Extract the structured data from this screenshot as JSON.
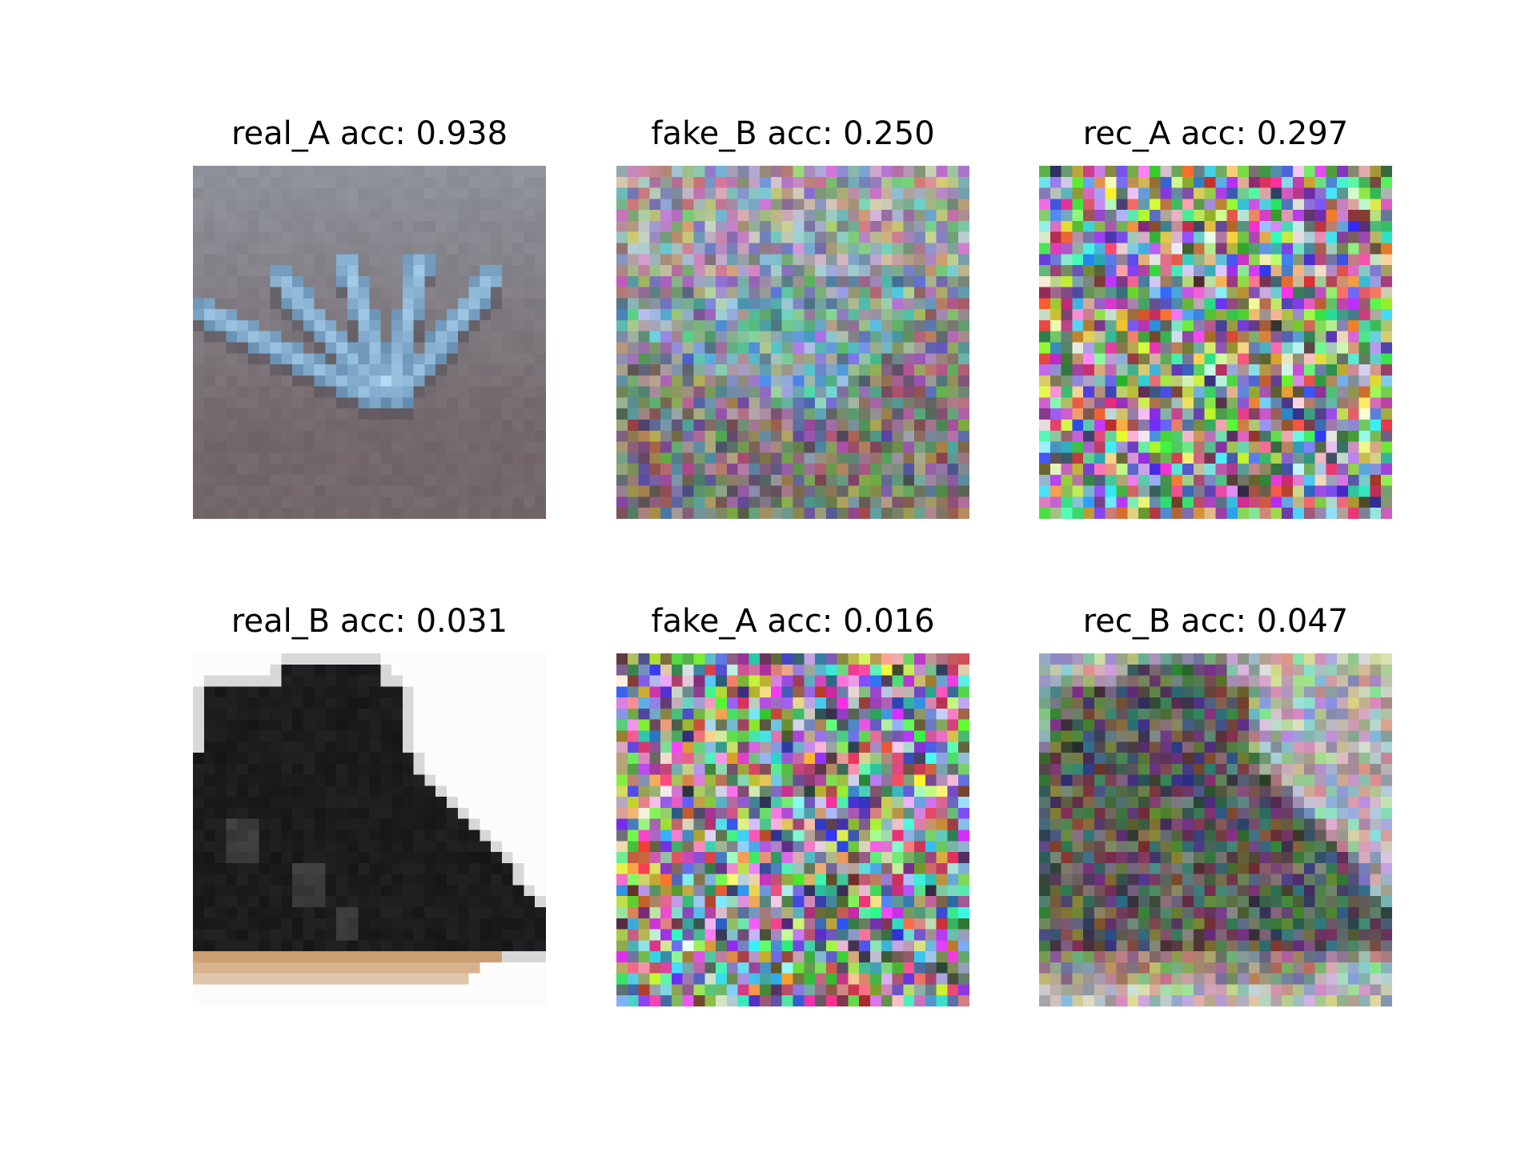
{
  "figure": {
    "panels": [
      {
        "title": "real_A acc: 0.938",
        "image": "blue-hand-glove-on-gray-background",
        "kind": "hand"
      },
      {
        "title": "fake_B acc: 0.250",
        "image": "noisy-translated-hand-image",
        "kind": "noisy-hand"
      },
      {
        "title": "rec_A acc: 0.297",
        "image": "random-color-pixel-noise",
        "kind": "noise"
      },
      {
        "title": "real_B acc: 0.031",
        "image": "black-ankle-boot-on-white-background",
        "kind": "boot"
      },
      {
        "title": "fake_A acc: 0.016",
        "image": "random-color-pixel-noise",
        "kind": "noise"
      },
      {
        "title": "rec_B acc: 0.047",
        "image": "noisy-reconstructed-boot-image",
        "kind": "noisy-boot"
      }
    ]
  }
}
